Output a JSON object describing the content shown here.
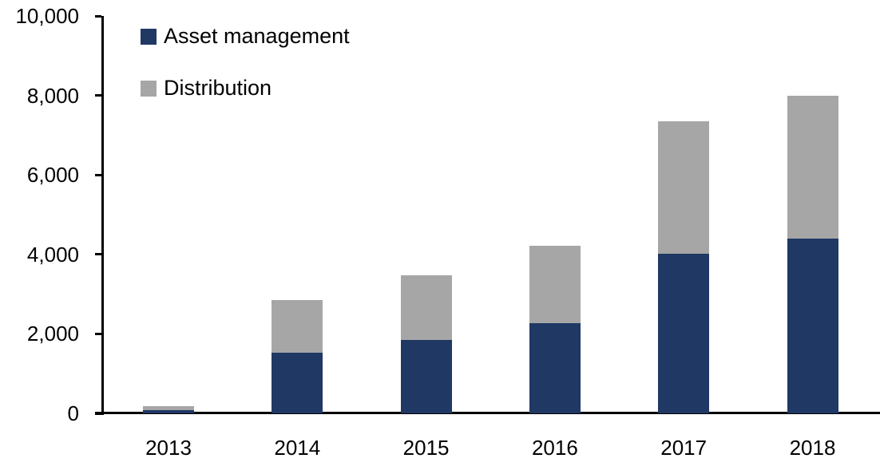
{
  "chart_data": {
    "type": "bar",
    "stacked": true,
    "title": "",
    "xlabel": "",
    "ylabel": "",
    "grid": false,
    "legend_position": "top-left",
    "categories": [
      "2013",
      "2014",
      "2015",
      "2016",
      "2017",
      "2018"
    ],
    "series": [
      {
        "name": "Asset management",
        "color": "#1F3864",
        "values": [
          90,
          1520,
          1850,
          2270,
          4010,
          4390
        ]
      },
      {
        "name": "Distribution",
        "color": "#A6A6A6",
        "values": [
          90,
          1330,
          1630,
          1950,
          3340,
          3610
        ]
      }
    ],
    "totals": [
      180,
      2850,
      3480,
      4220,
      7350,
      8000
    ],
    "y_axis": {
      "min": 0,
      "max": 10000,
      "tick_interval": 2000,
      "tick_labels": [
        "0",
        "2,000",
        "4,000",
        "6,000",
        "8,000",
        "10,000"
      ]
    }
  },
  "colors": {
    "axis": "#000000",
    "background": "#FFFFFF",
    "text": "#000000"
  }
}
